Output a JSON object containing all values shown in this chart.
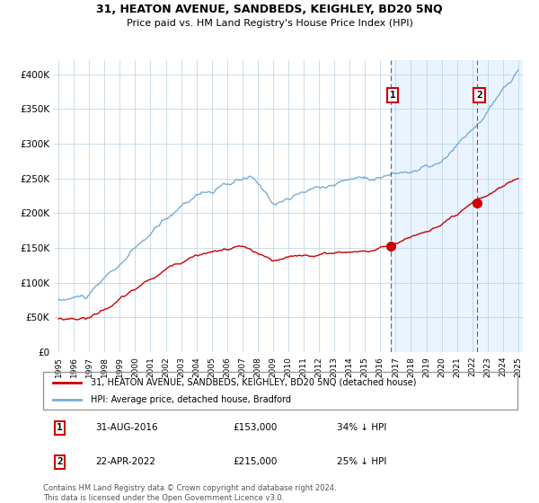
{
  "title": "31, HEATON AVENUE, SANDBEDS, KEIGHLEY, BD20 5NQ",
  "subtitle": "Price paid vs. HM Land Registry's House Price Index (HPI)",
  "legend_line1": "31, HEATON AVENUE, SANDBEDS, KEIGHLEY, BD20 5NQ (detached house)",
  "legend_line2": "HPI: Average price, detached house, Bradford",
  "annotation1_label": "1",
  "annotation1_date": "31-AUG-2016",
  "annotation1_price": "£153,000",
  "annotation1_note": "34% ↓ HPI",
  "annotation2_label": "2",
  "annotation2_date": "22-APR-2022",
  "annotation2_price": "£215,000",
  "annotation2_note": "25% ↓ HPI",
  "footer": "Contains HM Land Registry data © Crown copyright and database right 2024.\nThis data is licensed under the Open Government Licence v3.0.",
  "red_color": "#cc0000",
  "blue_color": "#7aadd4",
  "bg_shade_color": "#ddeeff",
  "ylim": [
    0,
    420000
  ],
  "yticks": [
    0,
    50000,
    100000,
    150000,
    200000,
    250000,
    300000,
    350000,
    400000
  ],
  "ytick_labels": [
    "£0",
    "£50K",
    "£100K",
    "£150K",
    "£200K",
    "£250K",
    "£300K",
    "£350K",
    "£400K"
  ],
  "x_start_year": 1995,
  "x_end_year": 2025,
  "sale1_year": 2016.67,
  "sale1_price": 153000,
  "sale2_year": 2022.31,
  "sale2_price": 215000
}
